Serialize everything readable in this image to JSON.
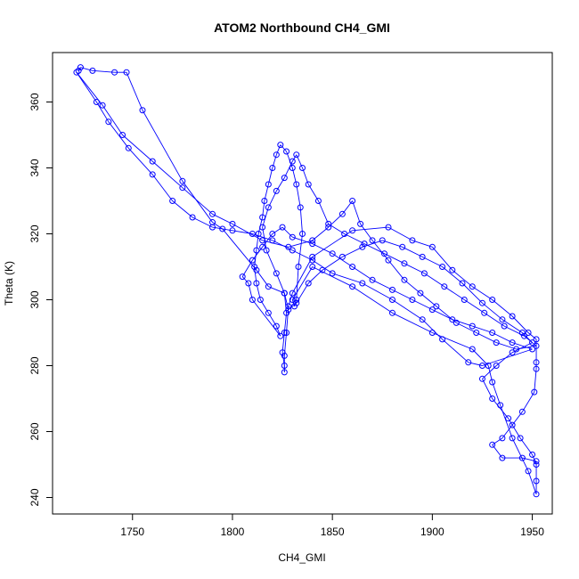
{
  "chart_data": {
    "type": "line",
    "title": "ATOM2 Northbound CH4_GMI",
    "xlabel": "CH4_GMI",
    "ylabel": "Theta (K)",
    "xlim": [
      1710,
      1960
    ],
    "ylim": [
      235,
      375
    ],
    "x_ticks": [
      1750,
      1800,
      1850,
      1900,
      1950
    ],
    "y_ticks": [
      240,
      260,
      280,
      300,
      320,
      340,
      360
    ],
    "grid": false,
    "legend": "none",
    "marker": "open-circle",
    "colors": {
      "series": "#0000ff",
      "axis": "#000000",
      "background": "#ffffff"
    },
    "series": [
      {
        "points": [
          [
            1723,
            369.5
          ],
          [
            1724,
            370.5
          ],
          [
            1730,
            369.5
          ],
          [
            1741,
            369
          ],
          [
            1747,
            369
          ],
          [
            1755,
            357.5
          ],
          [
            1775,
            336
          ],
          [
            1790,
            323.5
          ],
          [
            1795,
            321.5
          ],
          [
            1812,
            309
          ],
          [
            1818,
            304
          ],
          [
            1826,
            302
          ],
          [
            1827,
            296
          ],
          [
            1826,
            290
          ],
          [
            1825,
            284
          ],
          [
            1826,
            280
          ],
          [
            1826,
            278
          ],
          [
            1826,
            283
          ],
          [
            1827,
            290
          ],
          [
            1828,
            298
          ],
          [
            1830,
            302
          ],
          [
            1840,
            313
          ],
          [
            1860,
            321
          ],
          [
            1878,
            322
          ],
          [
            1890,
            318
          ],
          [
            1900,
            316
          ],
          [
            1910,
            309
          ],
          [
            1920,
            304
          ],
          [
            1930,
            300
          ],
          [
            1940,
            295
          ],
          [
            1948,
            290
          ],
          [
            1952,
            288
          ],
          [
            1952,
            281
          ],
          [
            1952,
            279
          ],
          [
            1951,
            272
          ],
          [
            1945,
            266
          ],
          [
            1940,
            262
          ],
          [
            1935,
            258
          ],
          [
            1930,
            256
          ],
          [
            1935,
            252
          ],
          [
            1945,
            252
          ],
          [
            1952,
            251
          ],
          [
            1952,
            245
          ],
          [
            1952,
            241
          ],
          [
            1948,
            248
          ],
          [
            1940,
            258
          ],
          [
            1934,
            268
          ],
          [
            1930,
            275
          ],
          [
            1928,
            280
          ],
          [
            1920,
            285
          ],
          [
            1900,
            290
          ],
          [
            1880,
            296
          ],
          [
            1860,
            304
          ],
          [
            1840,
            310
          ],
          [
            1830,
            300
          ],
          [
            1831,
            298
          ],
          [
            1832,
            300
          ],
          [
            1833,
            310
          ],
          [
            1835,
            320
          ],
          [
            1834,
            328
          ],
          [
            1832,
            335
          ],
          [
            1830,
            340
          ],
          [
            1827,
            345
          ],
          [
            1824,
            347
          ],
          [
            1822,
            344
          ],
          [
            1820,
            340
          ],
          [
            1818,
            335
          ],
          [
            1816,
            330
          ],
          [
            1815,
            325
          ],
          [
            1813,
            320
          ],
          [
            1812,
            315
          ],
          [
            1811,
            310
          ],
          [
            1812,
            305
          ],
          [
            1814,
            300
          ],
          [
            1818,
            296
          ],
          [
            1822,
            292
          ],
          [
            1824,
            289
          ],
          [
            1810,
            300
          ],
          [
            1808,
            305
          ],
          [
            1805,
            307
          ],
          [
            1810,
            312
          ],
          [
            1815,
            316
          ],
          [
            1820,
            320
          ],
          [
            1825,
            322
          ],
          [
            1830,
            319
          ],
          [
            1840,
            317
          ],
          [
            1850,
            314
          ],
          [
            1860,
            310
          ],
          [
            1870,
            306
          ],
          [
            1880,
            303
          ],
          [
            1890,
            300
          ],
          [
            1900,
            297
          ],
          [
            1910,
            294
          ],
          [
            1920,
            292
          ],
          [
            1930,
            290
          ],
          [
            1940,
            287
          ],
          [
            1950,
            285
          ],
          [
            1925,
            280
          ],
          [
            1918,
            281
          ],
          [
            1905,
            288
          ],
          [
            1895,
            294
          ],
          [
            1880,
            300
          ],
          [
            1865,
            305
          ],
          [
            1850,
            308
          ],
          [
            1840,
            312
          ],
          [
            1830,
            315
          ],
          [
            1820,
            318
          ],
          [
            1810,
            320
          ],
          [
            1800,
            321
          ],
          [
            1790,
            322
          ],
          [
            1780,
            325
          ],
          [
            1770,
            330
          ],
          [
            1760,
            338
          ],
          [
            1748,
            346
          ],
          [
            1738,
            354
          ],
          [
            1732,
            360
          ],
          [
            1722,
            369
          ],
          [
            1735,
            359
          ],
          [
            1745,
            350
          ],
          [
            1760,
            342
          ],
          [
            1775,
            334
          ],
          [
            1790,
            326
          ],
          [
            1800,
            323
          ],
          [
            1815,
            318
          ],
          [
            1828,
            316
          ],
          [
            1840,
            318
          ],
          [
            1848,
            322
          ],
          [
            1855,
            326
          ],
          [
            1860,
            330
          ],
          [
            1864,
            323
          ],
          [
            1870,
            318
          ],
          [
            1878,
            312
          ],
          [
            1886,
            306
          ],
          [
            1894,
            302
          ],
          [
            1902,
            298
          ],
          [
            1912,
            293
          ],
          [
            1922,
            290
          ],
          [
            1932,
            287
          ],
          [
            1942,
            285
          ],
          [
            1952,
            286
          ],
          [
            1946,
            289
          ],
          [
            1936,
            292
          ],
          [
            1926,
            296
          ],
          [
            1916,
            300
          ],
          [
            1906,
            304
          ],
          [
            1896,
            308
          ],
          [
            1886,
            311
          ],
          [
            1876,
            314
          ],
          [
            1866,
            317
          ],
          [
            1856,
            320
          ],
          [
            1848,
            323
          ],
          [
            1843,
            330
          ],
          [
            1838,
            335
          ],
          [
            1835,
            340
          ],
          [
            1832,
            344
          ],
          [
            1830,
            342
          ],
          [
            1826,
            337
          ],
          [
            1822,
            333
          ],
          [
            1818,
            328
          ],
          [
            1815,
            322
          ],
          [
            1817,
            315
          ],
          [
            1822,
            308
          ],
          [
            1826,
            302
          ],
          [
            1828,
            297
          ],
          [
            1832,
            299
          ],
          [
            1838,
            305
          ],
          [
            1845,
            309
          ],
          [
            1855,
            313
          ],
          [
            1865,
            316
          ],
          [
            1875,
            318
          ],
          [
            1885,
            316
          ],
          [
            1895,
            313
          ],
          [
            1905,
            310
          ],
          [
            1915,
            305
          ],
          [
            1925,
            299
          ],
          [
            1935,
            294
          ],
          [
            1945,
            290
          ],
          [
            1950,
            287
          ],
          [
            1940,
            284
          ],
          [
            1932,
            280
          ],
          [
            1925,
            276
          ],
          [
            1930,
            270
          ],
          [
            1938,
            264
          ],
          [
            1944,
            258
          ],
          [
            1950,
            253
          ],
          [
            1952,
            250
          ]
        ]
      }
    ]
  }
}
